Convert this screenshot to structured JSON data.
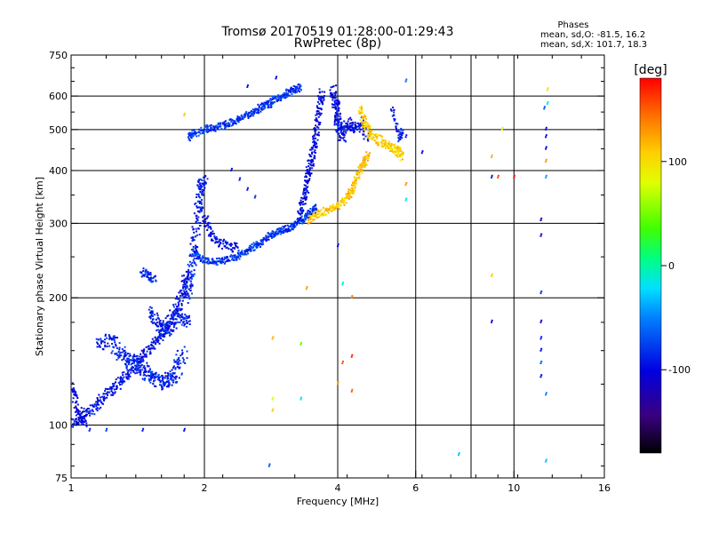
{
  "chart_data": {
    "type": "scatter",
    "title": "Tromsø 20170519 01:28:00-01:29:43",
    "subtitle": "RwPretec (8p)",
    "xlabel": "Frequency [MHz]",
    "ylabel": "Stationary phase Virtual Height [km]",
    "x_scale": "log",
    "y_scale": "log",
    "xlim": [
      1,
      16
    ],
    "ylim": [
      75,
      750
    ],
    "x_ticks": [
      {
        "value": 1,
        "label": "1"
      },
      {
        "value": 2,
        "label": "2"
      },
      {
        "value": 4,
        "label": "4"
      },
      {
        "value": 6,
        "label": "6"
      },
      {
        "value": 10,
        "label": "10"
      },
      {
        "value": 16,
        "label": "16"
      }
    ],
    "x_grid": [
      2,
      4,
      6,
      8,
      10
    ],
    "y_ticks": [
      {
        "value": 75,
        "label": "75"
      },
      {
        "value": 100,
        "label": "100"
      },
      {
        "value": 200,
        "label": "200"
      },
      {
        "value": 300,
        "label": "300"
      },
      {
        "value": 400,
        "label": "400"
      },
      {
        "value": 500,
        "label": "500"
      },
      {
        "value": 600,
        "label": "600"
      },
      {
        "value": 750,
        "label": "750"
      }
    ],
    "y_grid": [
      100,
      200,
      300,
      400,
      500,
      600
    ],
    "grid": true,
    "stats_header": "Phases",
    "stats_lines": [
      "mean, sd,O: -81.5, 16.2",
      "mean, sd,X: 101.7, 18.3"
    ],
    "colorbar": {
      "label": "[deg]",
      "range": [
        -180,
        180
      ],
      "ticks": [
        {
          "value": 100,
          "label": "100"
        },
        {
          "value": 0,
          "label": "0"
        },
        {
          "value": -100,
          "label": "-100"
        }
      ]
    },
    "traces": [
      {
        "name": "",
        "phase": -95,
        "spread": 0.035,
        "count": 6,
        "points": [
          [
            1.0,
            100
          ],
          [
            1.05,
            104
          ],
          [
            1.1,
            108
          ],
          [
            1.15,
            112
          ],
          [
            1.2,
            118
          ],
          [
            1.25,
            122
          ],
          [
            1.3,
            128
          ],
          [
            1.35,
            132
          ],
          [
            1.4,
            138
          ],
          [
            1.45,
            145
          ],
          [
            1.5,
            150
          ],
          [
            1.55,
            158
          ],
          [
            1.6,
            165
          ],
          [
            1.65,
            172
          ],
          [
            1.7,
            182
          ],
          [
            1.75,
            195
          ],
          [
            1.8,
            210
          ],
          [
            1.82,
            230
          ]
        ]
      },
      {
        "name": "",
        "phase": -88,
        "spread": 0.05,
        "count": 7,
        "points": [
          [
            1.25,
            155
          ],
          [
            1.3,
            148
          ],
          [
            1.35,
            142
          ],
          [
            1.4,
            140
          ],
          [
            1.45,
            136
          ],
          [
            1.5,
            132
          ],
          [
            1.55,
            128
          ],
          [
            1.6,
            125
          ],
          [
            1.65,
            130
          ],
          [
            1.7,
            128
          ],
          [
            1.75,
            140
          ],
          [
            1.8,
            150
          ]
        ]
      },
      {
        "name": "",
        "phase": -90,
        "spread": 0.04,
        "count": 6,
        "points": [
          [
            1.5,
            185
          ],
          [
            1.55,
            178
          ],
          [
            1.6,
            170
          ],
          [
            1.65,
            165
          ],
          [
            1.7,
            175
          ],
          [
            1.75,
            185
          ],
          [
            1.8,
            175
          ],
          [
            1.85,
            180
          ]
        ]
      },
      {
        "name": "",
        "phase": -92,
        "spread": 0.04,
        "count": 7,
        "points": [
          [
            1.82,
            200
          ],
          [
            1.85,
            215
          ],
          [
            1.88,
            240
          ],
          [
            1.9,
            270
          ],
          [
            1.93,
            310
          ],
          [
            1.95,
            340
          ],
          [
            1.97,
            370
          ],
          [
            2.0,
            380
          ]
        ]
      },
      {
        "name": "",
        "phase": -80,
        "spread": 0.022,
        "count": 6,
        "points": [
          [
            1.9,
            255
          ],
          [
            2.0,
            245
          ],
          [
            2.1,
            243
          ],
          [
            2.2,
            245
          ],
          [
            2.3,
            248
          ],
          [
            2.4,
            252
          ],
          [
            2.5,
            258
          ],
          [
            2.6,
            265
          ],
          [
            2.7,
            272
          ],
          [
            2.8,
            280
          ],
          [
            2.9,
            286
          ],
          [
            3.0,
            290
          ],
          [
            3.1,
            292
          ],
          [
            3.2,
            298
          ],
          [
            3.3,
            305
          ],
          [
            3.4,
            312
          ],
          [
            3.5,
            320
          ],
          [
            3.6,
            330
          ]
        ]
      },
      {
        "name": "",
        "phase": -96,
        "spread": 0.03,
        "count": 5,
        "points": [
          [
            2.0,
            310
          ],
          [
            2.05,
            290
          ],
          [
            2.1,
            275
          ],
          [
            2.2,
            268
          ],
          [
            2.3,
            262
          ],
          [
            2.4,
            265
          ]
        ]
      },
      {
        "name": "",
        "phase": -80,
        "spread": 0.025,
        "count": 6,
        "points": [
          [
            1.85,
            480
          ],
          [
            1.9,
            490
          ],
          [
            2.0,
            500
          ],
          [
            2.1,
            505
          ],
          [
            2.2,
            510
          ],
          [
            2.3,
            520
          ],
          [
            2.4,
            530
          ],
          [
            2.5,
            540
          ],
          [
            2.6,
            550
          ],
          [
            2.7,
            565
          ],
          [
            2.8,
            575
          ],
          [
            2.9,
            590
          ],
          [
            3.0,
            600
          ],
          [
            3.1,
            610
          ],
          [
            3.2,
            620
          ],
          [
            3.3,
            630
          ]
        ]
      },
      {
        "name": "",
        "phase": -100,
        "spread": 0.03,
        "count": 7,
        "points": [
          [
            3.3,
            315
          ],
          [
            3.35,
            340
          ],
          [
            3.4,
            370
          ],
          [
            3.45,
            400
          ],
          [
            3.5,
            430
          ],
          [
            3.55,
            470
          ],
          [
            3.6,
            520
          ],
          [
            3.65,
            580
          ],
          [
            3.7,
            620
          ]
        ]
      },
      {
        "name": "",
        "phase": 112,
        "spread": 0.025,
        "count": 7,
        "points": [
          [
            3.45,
            305
          ],
          [
            3.6,
            315
          ],
          [
            3.8,
            322
          ],
          [
            4.0,
            330
          ],
          [
            4.2,
            345
          ],
          [
            4.3,
            360
          ],
          [
            4.4,
            380
          ],
          [
            4.5,
            400
          ],
          [
            4.6,
            420
          ],
          [
            4.7,
            440
          ]
        ]
      },
      {
        "name": "",
        "phase": -98,
        "spread": 0.035,
        "count": 7,
        "points": [
          [
            3.9,
            620
          ],
          [
            3.95,
            580
          ],
          [
            4.0,
            550
          ],
          [
            4.0,
            520
          ],
          [
            4.05,
            500
          ],
          [
            4.1,
            480
          ],
          [
            4.2,
            520
          ],
          [
            4.3,
            500
          ],
          [
            4.5,
            520
          ],
          [
            4.7,
            470
          ]
        ]
      },
      {
        "name": "",
        "phase": 105,
        "spread": 0.03,
        "count": 6,
        "points": [
          [
            4.5,
            560
          ],
          [
            4.6,
            520
          ],
          [
            4.7,
            500
          ],
          [
            4.8,
            480
          ],
          [
            5.0,
            470
          ],
          [
            5.2,
            460
          ],
          [
            5.4,
            450
          ],
          [
            5.5,
            440
          ],
          [
            5.6,
            430
          ]
        ]
      },
      {
        "name": "",
        "phase": -90,
        "spread": 0.015,
        "count": 3,
        "points": [
          [
            5.3,
            560
          ],
          [
            5.4,
            520
          ],
          [
            5.5,
            480
          ],
          [
            5.6,
            500
          ],
          [
            5.5,
            460
          ]
        ]
      },
      {
        "name": "",
        "phase": -100,
        "spread": 0.03,
        "count": 6,
        "points": [
          [
            1.0,
            125
          ],
          [
            1.02,
            115
          ],
          [
            1.05,
            105
          ],
          [
            1.08,
            100
          ]
        ]
      },
      {
        "name": "",
        "phase": -85,
        "spread": 0.03,
        "count": 6,
        "points": [
          [
            1.45,
            230
          ],
          [
            1.5,
            225
          ],
          [
            1.55,
            220
          ]
        ]
      },
      {
        "name": "",
        "phase": -95,
        "spread": 0.04,
        "count": 5,
        "points": [
          [
            1.15,
            155
          ],
          [
            1.2,
            158
          ],
          [
            1.25,
            160
          ]
        ]
      }
    ],
    "scattered": [
      [
        1.1,
        97,
        -90
      ],
      [
        1.2,
        97,
        -80
      ],
      [
        1.45,
        97,
        -95
      ],
      [
        1.8,
        97,
        -100
      ],
      [
        2.8,
        80,
        -70
      ],
      [
        2.4,
        380,
        -90
      ],
      [
        2.5,
        360,
        -95
      ],
      [
        2.6,
        345,
        -80
      ],
      [
        2.3,
        400,
        -95
      ],
      [
        2.85,
        160,
        120
      ],
      [
        2.85,
        115,
        80
      ],
      [
        2.85,
        108,
        110
      ],
      [
        3.3,
        155,
        50
      ],
      [
        3.3,
        115,
        -20
      ],
      [
        3.4,
        210,
        130
      ],
      [
        4.0,
        265,
        -100
      ],
      [
        4.1,
        215,
        -10
      ],
      [
        4.1,
        140,
        150
      ],
      [
        4.0,
        125,
        130
      ],
      [
        4.3,
        200,
        140
      ],
      [
        4.3,
        145,
        170
      ],
      [
        4.3,
        120,
        150
      ],
      [
        1.8,
        540,
        110
      ],
      [
        2.5,
        630,
        -90
      ],
      [
        2.9,
        660,
        -100
      ],
      [
        5.7,
        480,
        -95
      ],
      [
        5.7,
        370,
        130
      ],
      [
        5.7,
        340,
        -20
      ],
      [
        5.7,
        650,
        -60
      ],
      [
        6.2,
        440,
        -100
      ],
      [
        7.5,
        85,
        -30
      ],
      [
        8.9,
        385,
        -95
      ],
      [
        8.9,
        430,
        120
      ],
      [
        8.9,
        225,
        110
      ],
      [
        8.9,
        175,
        -110
      ],
      [
        9.2,
        385,
        160
      ],
      [
        9.4,
        500,
        90
      ],
      [
        10.0,
        385,
        175
      ],
      [
        11.5,
        305,
        -110
      ],
      [
        11.5,
        280,
        -110
      ],
      [
        11.5,
        205,
        -80
      ],
      [
        11.5,
        175,
        -110
      ],
      [
        11.5,
        160,
        -90
      ],
      [
        11.5,
        150,
        -100
      ],
      [
        11.5,
        140,
        -60
      ],
      [
        11.5,
        130,
        -100
      ],
      [
        11.8,
        118,
        -50
      ],
      [
        11.8,
        82,
        -30
      ],
      [
        11.8,
        385,
        -40
      ],
      [
        11.8,
        420,
        130
      ],
      [
        11.8,
        450,
        -110
      ],
      [
        11.8,
        480,
        -100
      ],
      [
        11.7,
        560,
        -70
      ],
      [
        11.9,
        575,
        -20
      ],
      [
        11.9,
        620,
        100
      ],
      [
        11.8,
        500,
        -100
      ]
    ]
  }
}
